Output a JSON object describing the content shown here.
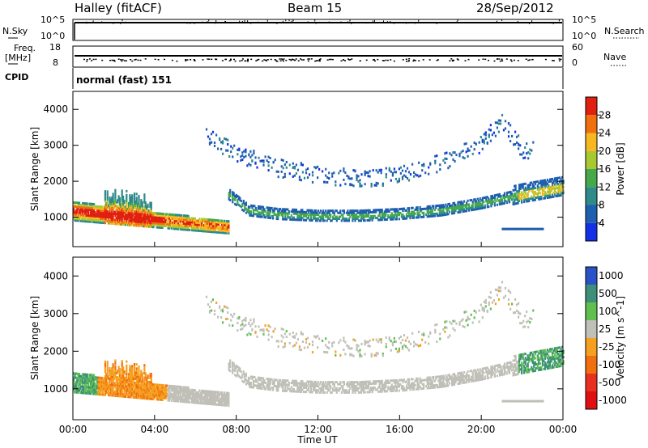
{
  "header": {
    "station": "Halley (fitACF)",
    "beam": "Beam 15",
    "date": "28/Sep/2012"
  },
  "strips": {
    "nsky_label": "N.Sky",
    "nsearch_label": "N.Search",
    "nsky_ticks": [
      "10^5",
      "10^0"
    ],
    "nsearch_ticks": [
      "10^5",
      "10^0"
    ],
    "freq_label_1": "Freq.",
    "freq_label_2": "[MHz]",
    "freq_ticks": [
      "18",
      "8"
    ],
    "nave_label": "Nave",
    "nave_ticks": [
      "60",
      "0"
    ],
    "cpid_label": "CPID",
    "cpid_value": "normal (fast) 151"
  },
  "chart_data": [
    {
      "type": "heatmap",
      "title": "Power [dB]",
      "ylabel": "Slant Range [km]",
      "xlabel": "Time UT",
      "x_ticks": [
        "00:00",
        "04:00",
        "08:00",
        "12:00",
        "16:00",
        "20:00",
        "00:00"
      ],
      "y_ticks": [
        1000,
        2000,
        3000,
        4000
      ],
      "ylim": [
        180,
        4500
      ],
      "xlim_hours": [
        0,
        24
      ],
      "colorbar": {
        "label": "Power [dB]",
        "ticks": [
          4,
          8,
          12,
          16,
          20,
          24,
          28
        ],
        "range": [
          0,
          32
        ],
        "colors": [
          "#1430e6",
          "#1f5fb0",
          "#2f8a8a",
          "#45a84a",
          "#a8c830",
          "#f5b820",
          "#f07010",
          "#e02010"
        ]
      },
      "bands": [
        {
          "name": "E-region trace",
          "t0": 0.0,
          "t1": 7.6,
          "r0": 1150,
          "r1": 700,
          "level": 24
        },
        {
          "name": "Main F-region trace",
          "t0": 7.6,
          "t1": 24.0,
          "r_path": [
            [
              7.6,
              1600
            ],
            [
              8.6,
              1150
            ],
            [
              10,
              1050
            ],
            [
              12,
              1000
            ],
            [
              14,
              1000
            ],
            [
              16,
              1050
            ],
            [
              18,
              1150
            ],
            [
              20,
              1350
            ],
            [
              22,
              1600
            ],
            [
              24,
              1800
            ]
          ],
          "level": 8
        },
        {
          "name": "Upper scatter arc",
          "t0": 6.5,
          "t1": 22.5,
          "r_path": [
            [
              6.5,
              3300
            ],
            [
              8,
              2800
            ],
            [
              10,
              2400
            ],
            [
              12,
              2200
            ],
            [
              14,
              2100
            ],
            [
              16,
              2200
            ],
            [
              18,
              2550
            ],
            [
              20,
              3100
            ],
            [
              21,
              3700
            ],
            [
              22,
              2900
            ]
          ],
          "level": 6
        },
        {
          "name": "Late near-range patch",
          "t0": 21.0,
          "t1": 23.0,
          "r_path": [
            [
              21.0,
              650
            ],
            [
              23.0,
              650
            ]
          ],
          "level": 6
        }
      ]
    },
    {
      "type": "heatmap",
      "title": "Velocity [m s^-1]",
      "ylabel": "Slant Range [km]",
      "xlabel": "Time UT",
      "x_ticks": [
        "00:00",
        "04:00",
        "08:00",
        "12:00",
        "16:00",
        "20:00",
        "00:00"
      ],
      "y_ticks": [
        1000,
        2000,
        3000,
        4000
      ],
      "ylim": [
        180,
        4500
      ],
      "colorbar": {
        "label": "Velocity [m s^-1]",
        "ticks": [
          "1000",
          "500",
          "100",
          "25",
          "-25",
          "-100",
          "-500",
          "-1000"
        ],
        "colors": [
          "#2a52c8",
          "#3d8f7a",
          "#5fc050",
          "#c0c0b8",
          "#f5a020",
          "#f07010",
          "#e83020",
          "#e01010"
        ]
      }
    }
  ]
}
